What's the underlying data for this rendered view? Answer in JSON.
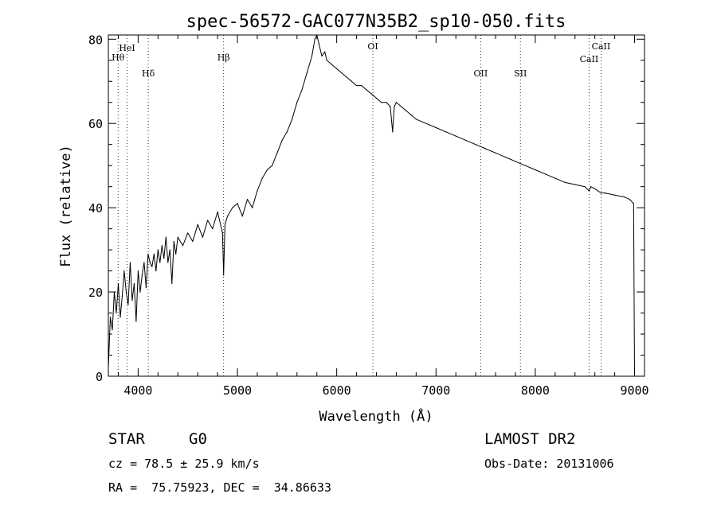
{
  "chart_data": {
    "type": "line",
    "title": "spec-56572-GAC077N35B2_sp10-050.fits",
    "xlabel": "Wavelength (Å)",
    "ylabel": "Flux (relative)",
    "xlim": [
      3700,
      9100
    ],
    "ylim": [
      0,
      81
    ],
    "xticks": [
      4000,
      5000,
      6000,
      7000,
      8000,
      9000
    ],
    "yticks": [
      0,
      20,
      40,
      60,
      80
    ],
    "grid": false,
    "series": [
      {
        "x": [
          3700,
          3720,
          3740,
          3760,
          3780,
          3800,
          3820,
          3840,
          3860,
          3880,
          3900,
          3920,
          3940,
          3960,
          3980,
          4000,
          4020,
          4040,
          4060,
          4080,
          4100,
          4120,
          4140,
          4160,
          4180,
          4200,
          4220,
          4240,
          4260,
          4280,
          4300,
          4320,
          4340,
          4360,
          4380,
          4400,
          4450,
          4500,
          4550,
          4600,
          4650,
          4700,
          4750,
          4800,
          4850,
          4861,
          4875,
          4900,
          4950,
          5000,
          5050,
          5100,
          5150,
          5200,
          5250,
          5300,
          5350,
          5400,
          5450,
          5500,
          5550,
          5600,
          5650,
          5700,
          5750,
          5780,
          5800,
          5820,
          5850,
          5880,
          5900,
          5950,
          6000,
          6050,
          6100,
          6150,
          6200,
          6250,
          6300,
          6350,
          6400,
          6450,
          6500,
          6540,
          6563,
          6580,
          6600,
          6650,
          6700,
          6750,
          6800,
          6900,
          7000,
          7100,
          7200,
          7300,
          7400,
          7500,
          7600,
          7700,
          7800,
          7900,
          8000,
          8100,
          8200,
          8300,
          8400,
          8500,
          8542,
          8560,
          8600,
          8662,
          8700,
          8800,
          8900,
          8950,
          8990,
          9000
        ],
        "values": [
          2,
          14,
          11,
          20,
          15,
          22,
          14,
          19,
          25,
          20,
          17,
          27,
          18,
          22,
          13,
          25,
          20,
          24,
          27,
          21,
          29,
          27,
          26,
          29,
          25,
          30,
          27,
          31,
          28,
          33,
          27,
          30,
          22,
          32,
          29,
          33,
          31,
          34,
          32,
          36,
          33,
          37,
          35,
          39,
          34,
          24,
          36,
          38,
          40,
          41,
          38,
          42,
          40,
          44,
          47,
          49,
          50,
          53,
          56,
          58,
          61,
          65,
          68,
          72,
          76,
          80,
          81,
          79,
          76,
          77,
          75,
          74,
          73,
          72,
          71,
          70,
          69,
          69,
          68,
          67,
          66,
          65,
          65,
          64,
          58,
          64,
          65,
          64,
          63,
          62,
          61,
          60,
          59,
          58,
          57,
          56,
          55,
          54,
          53,
          52,
          51,
          50,
          49,
          48,
          47,
          46,
          45.5,
          45,
          44,
          45,
          44.5,
          43.5,
          43.5,
          43,
          42.5,
          42,
          41,
          0
        ]
      }
    ],
    "annotations": [
      {
        "label": "Hθ",
        "x": 3798
      },
      {
        "label": "HeI",
        "x": 3889
      },
      {
        "label": "Hδ",
        "x": 4102
      },
      {
        "label": "Hβ",
        "x": 4861
      },
      {
        "label": "OI",
        "x": 6364
      },
      {
        "label": "OII",
        "x": 7450
      },
      {
        "label": "SII",
        "x": 7850
      },
      {
        "label": "CaII",
        "x": 8542
      },
      {
        "label": "CaII",
        "x": 8662
      }
    ]
  },
  "info": {
    "object_type": "STAR",
    "subclass": "G0",
    "survey": "LAMOST DR2",
    "cz": "cz = 78.5 ± 25.9 km/s",
    "obs_date": "Obs-Date: 20131006",
    "coords": "RA =  75.75923, DEC =  34.86633"
  },
  "colors": {
    "line": "#000000",
    "background": "#ffffff"
  }
}
